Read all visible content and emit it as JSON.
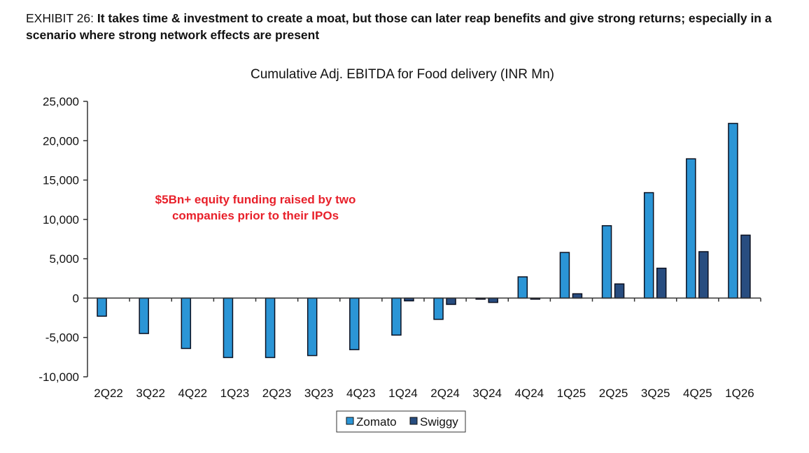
{
  "exhibit": {
    "label": "EXHIBIT 26:",
    "headline": "It takes time & investment to create a moat, but those can later reap benefits and give strong returns; especially in a scenario where strong network effects are present"
  },
  "chart_data": {
    "type": "bar",
    "title": "Cumulative Adj. EBITDA for Food delivery (INR Mn)",
    "xlabel": "",
    "ylabel": "",
    "ylim": [
      -10000,
      25000
    ],
    "yticks": [
      -10000,
      -5000,
      0,
      5000,
      10000,
      15000,
      20000,
      25000
    ],
    "ytick_labels": [
      "-10,000",
      "-5,000",
      "0",
      "5,000",
      "10,000",
      "15,000",
      "20,000",
      "25,000"
    ],
    "grid": false,
    "legend_position": "bottom",
    "categories": [
      "2Q22",
      "3Q22",
      "4Q22",
      "1Q23",
      "2Q23",
      "3Q23",
      "4Q23",
      "1Q24",
      "2Q24",
      "3Q24",
      "4Q24",
      "1Q25",
      "2Q25",
      "3Q25",
      "4Q25",
      "1Q26"
    ],
    "series": [
      {
        "name": "Zomato",
        "color": "#2b95d6",
        "values": [
          -2300,
          -4500,
          -6400,
          -7550,
          -7550,
          -7300,
          -6550,
          -4700,
          -2700,
          -100,
          2700,
          5800,
          9200,
          13400,
          17700,
          22200
        ]
      },
      {
        "name": "Swiggy",
        "color": "#284d80",
        "values": [
          null,
          null,
          null,
          null,
          null,
          null,
          null,
          -350,
          -800,
          -550,
          -100,
          550,
          1800,
          3800,
          5900,
          8000
        ]
      }
    ],
    "annotation": {
      "text_line1": "$5Bn+ equity funding raised by two",
      "text_line2": "companies prior to their IPOs",
      "color": "#e8202a"
    }
  }
}
